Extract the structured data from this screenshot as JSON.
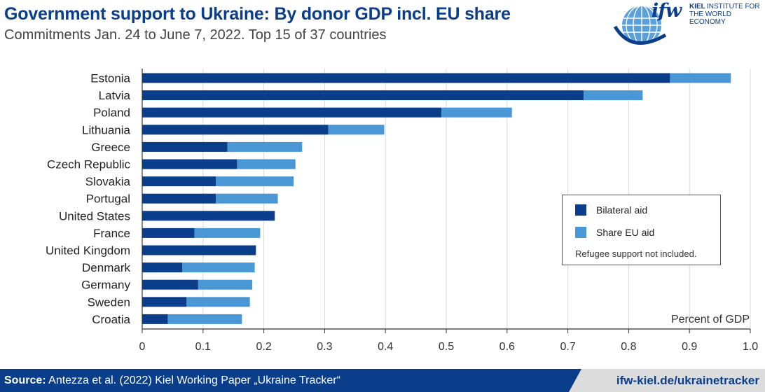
{
  "header": {
    "title": "Government support to Ukraine: By donor GDP incl. EU share",
    "subtitle": "Commitments Jan. 24 to June 7, 2022. Top 15 of 37 countries"
  },
  "logo": {
    "mark": "ifw",
    "line1_bold": "KIEL",
    "line1_rest": "INSTITUTE FOR",
    "line2": "THE WORLD ECONOMY"
  },
  "legend": {
    "bilateral_label": "Bilateral aid",
    "eu_label": "Share EU aid",
    "note": "Refugee support not included."
  },
  "footer": {
    "source_label": "Source:",
    "source_text": " Antezza et al. (2022) Kiel Working Paper „Ukraine Tracker“",
    "url": "ifw-kiel.de/ukrainetracker"
  },
  "colors": {
    "bilateral": "#0b3e8a",
    "eu_share": "#4a97d6",
    "grid": "#d9d9d9",
    "axis": "#333333"
  },
  "chart_data": {
    "type": "bar",
    "orientation": "horizontal",
    "stacked": true,
    "xlabel": "Percent of GDP",
    "xlim": [
      0,
      1.0
    ],
    "xticks": [
      "0",
      "0.1",
      "0.2",
      "0.3",
      "0.4",
      "0.5",
      "0.6",
      "0.7",
      "0.8",
      "0.9",
      "1.0"
    ],
    "grid": true,
    "legend_position": "right",
    "categories": [
      "Estonia",
      "Latvia",
      "Poland",
      "Lithuania",
      "Greece",
      "Czech Republic",
      "Slovakia",
      "Portugal",
      "United States",
      "France",
      "United Kingdom",
      "Denmark",
      "Germany",
      "Sweden",
      "Croatia"
    ],
    "series": [
      {
        "name": "Bilateral aid",
        "values": [
          0.868,
          0.726,
          0.492,
          0.306,
          0.14,
          0.156,
          0.121,
          0.121,
          0.218,
          0.086,
          0.187,
          0.066,
          0.092,
          0.073,
          0.042
        ]
      },
      {
        "name": "Share EU aid",
        "values": [
          0.1,
          0.097,
          0.116,
          0.092,
          0.123,
          0.096,
          0.128,
          0.102,
          0.0,
          0.108,
          0.0,
          0.119,
          0.089,
          0.104,
          0.122
        ]
      }
    ]
  }
}
